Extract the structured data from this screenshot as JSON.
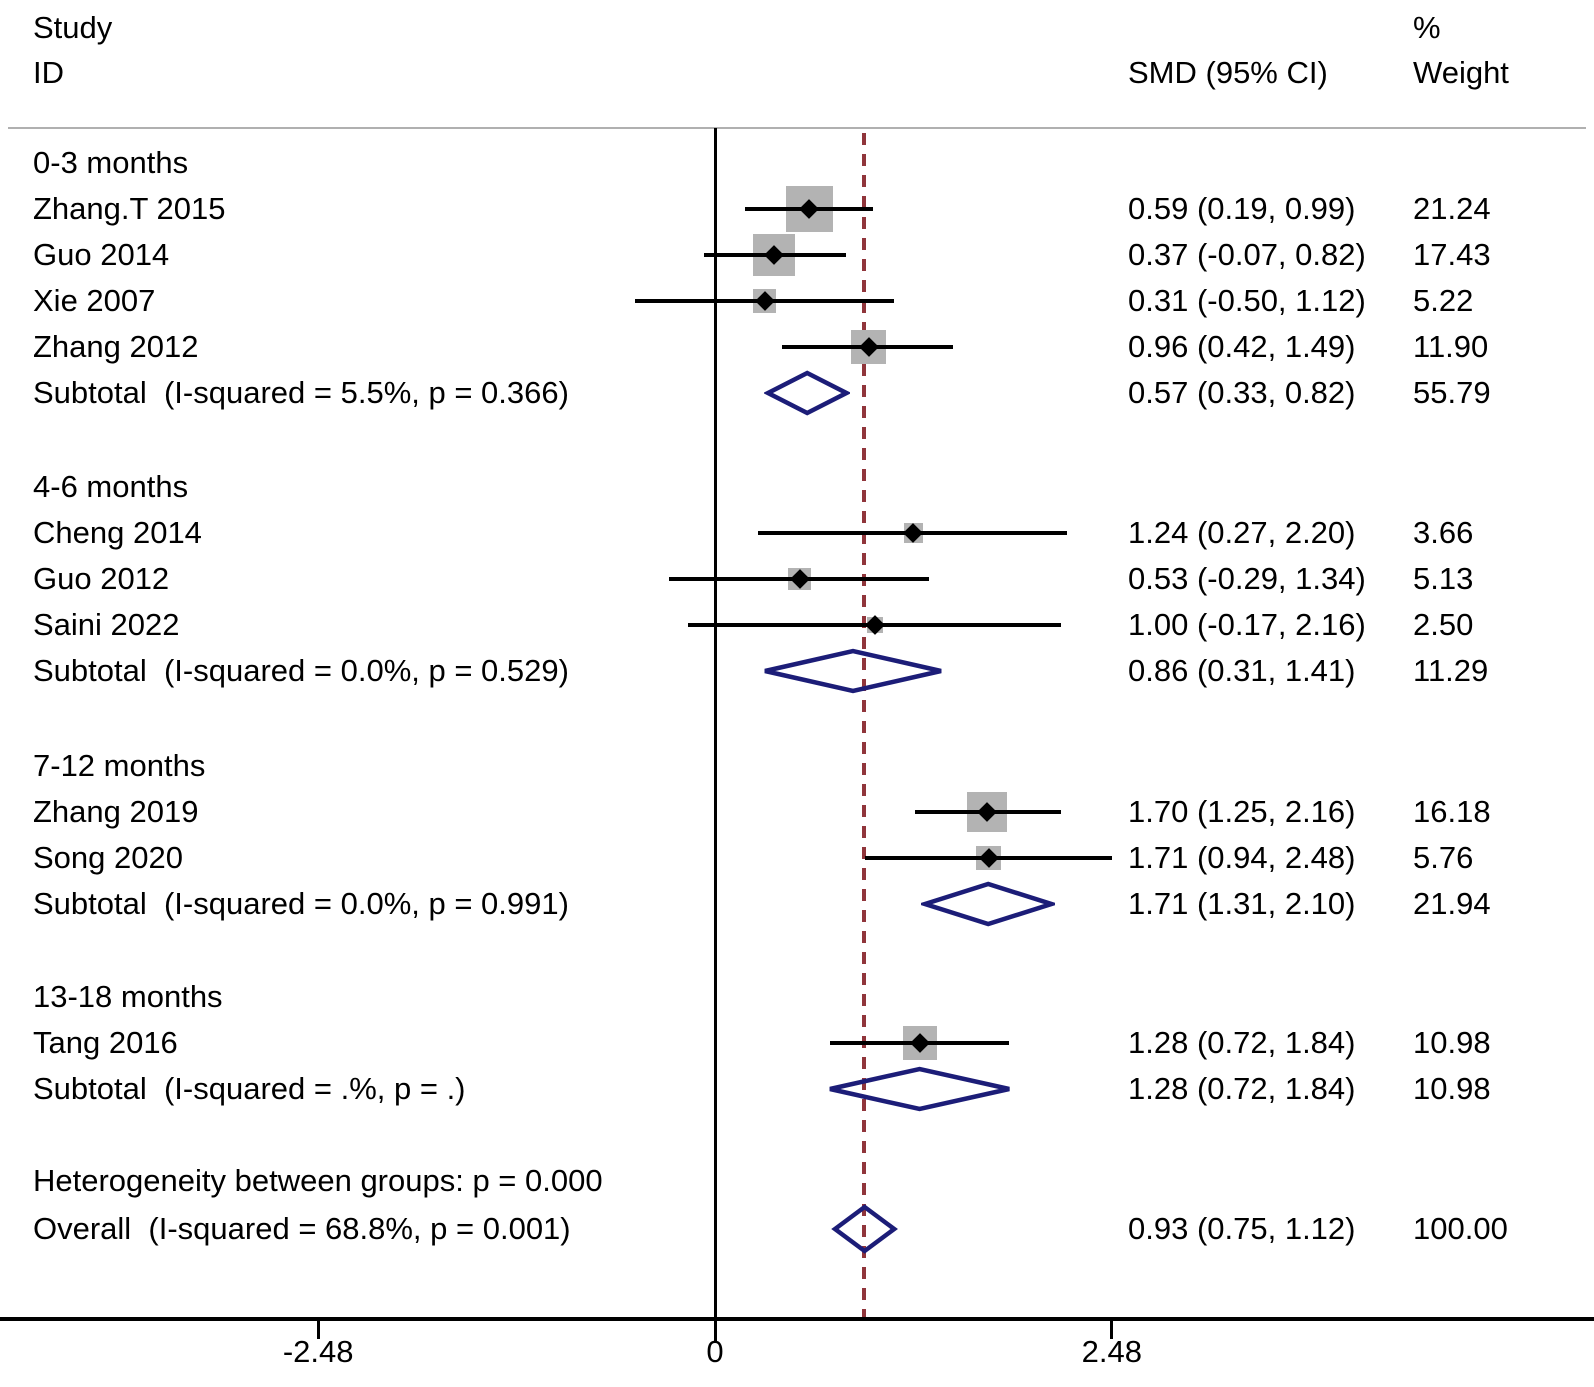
{
  "header": {
    "study_line1": "Study",
    "study_line2": "ID",
    "smd_ci": "SMD (95% CI)",
    "weight_line1": "%",
    "weight_line2": "Weight"
  },
  "colors": {
    "text": "#000000",
    "ci_line": "#000000",
    "square": "#b3b3b3",
    "point_marker": "#000000",
    "pooled_diamond": "#1c1d78",
    "overall_dashed_line": "#90353b",
    "header_rule": "#b0b0b0",
    "axis": "#000000"
  },
  "chart_data": {
    "type": "forest",
    "effect_measure": "SMD",
    "null_line_value": 0,
    "overall_dashed_line_value": 0.93,
    "x_axis": {
      "ticks": [
        {
          "label": "-2.48",
          "value": -2.48
        },
        {
          "label": "0",
          "value": 0
        },
        {
          "label": "2.48",
          "value": 2.48
        }
      ]
    },
    "groups": [
      {
        "label": "0-3 months",
        "studies": [
          {
            "id": "Zhang.T 2015",
            "smd": 0.59,
            "lo": 0.19,
            "hi": 0.99,
            "weight": 21.24,
            "smd_text": "0.59 (0.19, 0.99)",
            "weight_text": "21.24"
          },
          {
            "id": "Guo 2014",
            "smd": 0.37,
            "lo": -0.07,
            "hi": 0.82,
            "weight": 17.43,
            "smd_text": "0.37 (-0.07, 0.82)",
            "weight_text": "17.43"
          },
          {
            "id": "Xie 2007",
            "smd": 0.31,
            "lo": -0.5,
            "hi": 1.12,
            "weight": 5.22,
            "smd_text": "0.31 (-0.50, 1.12)",
            "weight_text": "5.22"
          },
          {
            "id": "Zhang 2012",
            "smd": 0.96,
            "lo": 0.42,
            "hi": 1.49,
            "weight": 11.9,
            "smd_text": "0.96 (0.42, 1.49)",
            "weight_text": "11.90"
          }
        ],
        "subtotal": {
          "label": "Subtotal  (I-squared = 5.5%, p = 0.366)",
          "smd": 0.57,
          "lo": 0.33,
          "hi": 0.82,
          "smd_text": "0.57 (0.33, 0.82)",
          "weight_text": "55.79"
        }
      },
      {
        "label": "4-6 months",
        "studies": [
          {
            "id": "Cheng 2014",
            "smd": 1.24,
            "lo": 0.27,
            "hi": 2.2,
            "weight": 3.66,
            "smd_text": "1.24 (0.27, 2.20)",
            "weight_text": "3.66"
          },
          {
            "id": "Guo 2012",
            "smd": 0.53,
            "lo": -0.29,
            "hi": 1.34,
            "weight": 5.13,
            "smd_text": "0.53 (-0.29, 1.34)",
            "weight_text": "5.13"
          },
          {
            "id": "Saini 2022",
            "smd": 1.0,
            "lo": -0.17,
            "hi": 2.16,
            "weight": 2.5,
            "smd_text": "1.00 (-0.17, 2.16)",
            "weight_text": "2.50"
          }
        ],
        "subtotal": {
          "label": "Subtotal  (I-squared = 0.0%, p = 0.529)",
          "smd": 0.86,
          "lo": 0.31,
          "hi": 1.41,
          "smd_text": "0.86 (0.31, 1.41)",
          "weight_text": "11.29"
        }
      },
      {
        "label": "7-12 months",
        "studies": [
          {
            "id": "Zhang 2019",
            "smd": 1.7,
            "lo": 1.25,
            "hi": 2.16,
            "weight": 16.18,
            "smd_text": "1.70 (1.25, 2.16)",
            "weight_text": "16.18"
          },
          {
            "id": "Song 2020",
            "smd": 1.71,
            "lo": 0.94,
            "hi": 2.48,
            "weight": 5.76,
            "smd_text": "1.71 (0.94, 2.48)",
            "weight_text": "5.76"
          }
        ],
        "subtotal": {
          "label": "Subtotal  (I-squared = 0.0%, p = 0.991)",
          "smd": 1.71,
          "lo": 1.31,
          "hi": 2.1,
          "smd_text": "1.71 (1.31, 2.10)",
          "weight_text": "21.94"
        }
      },
      {
        "label": "13-18 months",
        "studies": [
          {
            "id": "Tang 2016",
            "smd": 1.28,
            "lo": 0.72,
            "hi": 1.84,
            "weight": 10.98,
            "smd_text": "1.28 (0.72, 1.84)",
            "weight_text": "10.98"
          }
        ],
        "subtotal": {
          "label": "Subtotal  (I-squared = .%, p = .)",
          "smd": 1.28,
          "lo": 0.72,
          "hi": 1.84,
          "smd_text": "1.28 (0.72, 1.84)",
          "weight_text": "10.98"
        }
      }
    ],
    "heterogeneity_note": "Heterogeneity between groups: p = 0.000",
    "overall": {
      "label": "Overall  (I-squared = 68.8%, p = 0.001)",
      "smd": 0.93,
      "lo": 0.75,
      "hi": 1.12,
      "smd_text": "0.93 (0.75, 1.12)",
      "weight_text": "100.00"
    }
  }
}
